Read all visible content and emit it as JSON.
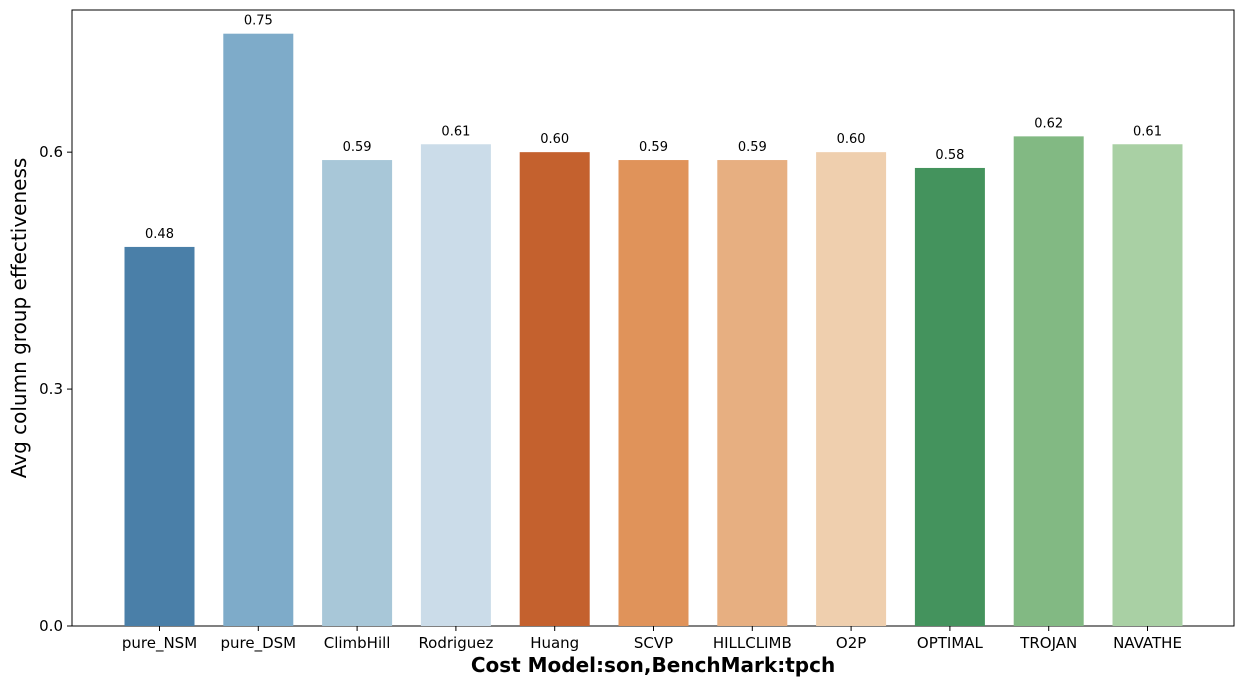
{
  "chart_data": {
    "type": "bar",
    "categories": [
      "pure_NSM",
      "pure_DSM",
      "ClimbHill",
      "Rodriguez",
      "Huang",
      "SCVP",
      "HILLCLIMB",
      "O2P",
      "OPTIMAL",
      "TROJAN",
      "NAVATHE"
    ],
    "values": [
      0.48,
      0.75,
      0.59,
      0.61,
      0.6,
      0.59,
      0.59,
      0.6,
      0.58,
      0.62,
      0.61
    ],
    "data_labels": [
      "0.48",
      "0.75",
      "0.59",
      "0.61",
      "0.60",
      "0.59",
      "0.59",
      "0.60",
      "0.58",
      "0.62",
      "0.61"
    ],
    "colors": [
      "#4a7fa8",
      "#7eabc9",
      "#a8c7d8",
      "#cbdce9",
      "#c4612e",
      "#e0935a",
      "#e7af81",
      "#efcfae",
      "#44935d",
      "#82b983",
      "#a9d0a4"
    ],
    "title": "",
    "xlabel": "Cost Model:son,BenchMark:tpch",
    "ylabel": "Avg column group effectiveness",
    "ylim": [
      0,
      0.78
    ],
    "yticks": [
      0.0,
      0.3,
      0.6
    ],
    "ytick_labels": [
      "0.0",
      "0.3",
      "0.6"
    ],
    "grid": false,
    "legend": "none"
  }
}
